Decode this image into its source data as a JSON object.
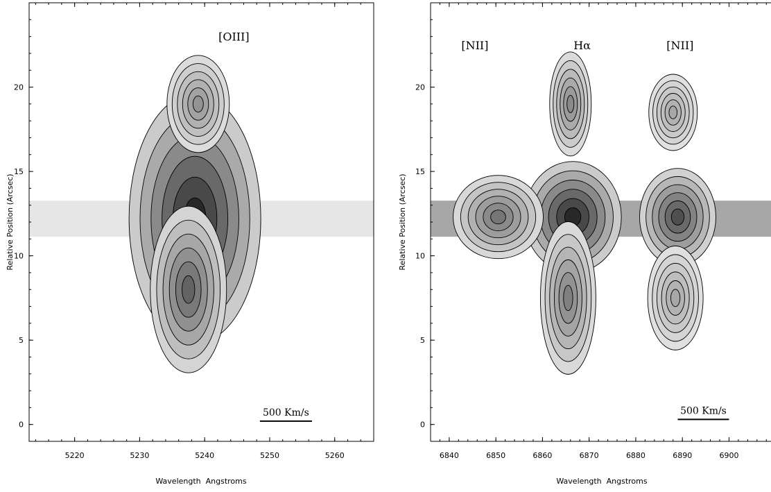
{
  "chart_data": [
    {
      "type": "heatmap",
      "title": "",
      "xlabel": "Wavelength  Angstroms",
      "ylabel": "Relative Position (Arcsec)",
      "xlim": [
        5213,
        5266
      ],
      "ylim": [
        -1,
        25
      ],
      "xticks": [
        5220,
        5230,
        5240,
        5250,
        5260
      ],
      "yticks": [
        0,
        5,
        10,
        15,
        20
      ],
      "line_labels": [
        {
          "text": "[OIII]",
          "x": 5244.5,
          "y": 23
        }
      ],
      "scale_bar": {
        "text": "500 Km/s",
        "x_start": 5248.5,
        "x_end": 5256.5,
        "y": 0.2
      },
      "emission_components": [
        {
          "x": 5238.5,
          "y": 12.2,
          "peak": 1.0
        },
        {
          "x": 5237.5,
          "y": 8.0,
          "peak": 0.7
        },
        {
          "x": 5239.0,
          "y": 19.0,
          "peak": 0.45
        }
      ],
      "grid": false
    },
    {
      "type": "heatmap",
      "title": "",
      "xlabel": "Wavelength  Angstroms",
      "ylabel": "Relative Position (Arcsec)",
      "xlim": [
        6836,
        6909
      ],
      "ylim": [
        -1,
        25
      ],
      "xticks": [
        6840,
        6850,
        6860,
        6870,
        6880,
        6890,
        6900
      ],
      "yticks": [
        0,
        5,
        10,
        15,
        20
      ],
      "line_labels": [
        {
          "text": "[NII]",
          "x": 6845.5,
          "y": 22.5
        },
        {
          "text": "Hα",
          "x": 6868.5,
          "y": 22.5
        },
        {
          "text": "[NII]",
          "x": 6889.5,
          "y": 22.5
        }
      ],
      "scale_bar": {
        "text": "500 Km/s",
        "x_start": 6889,
        "x_end": 6900,
        "y": 0.3
      },
      "emission_components": [
        {
          "x": 6866.5,
          "y": 12.3,
          "peak": 1.0
        },
        {
          "x": 6889.0,
          "y": 12.3,
          "peak": 0.8
        },
        {
          "x": 6850.5,
          "y": 12.3,
          "peak": 0.6
        },
        {
          "x": 6865.5,
          "y": 7.5,
          "peak": 0.55
        },
        {
          "x": 6866.0,
          "y": 19.0,
          "peak": 0.5
        },
        {
          "x": 6888.5,
          "y": 7.5,
          "peak": 0.35
        },
        {
          "x": 6888.0,
          "y": 18.5,
          "peak": 0.35
        }
      ],
      "grid": false
    }
  ]
}
